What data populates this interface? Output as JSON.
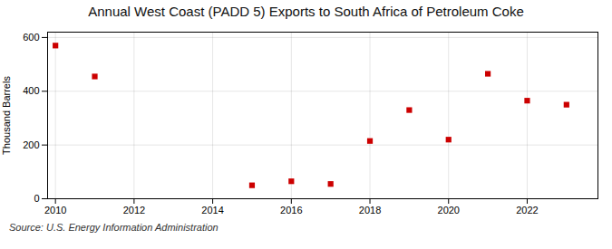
{
  "chart_data": {
    "type": "scatter",
    "title": "Annual West Coast (PADD 5) Exports to South Africa of Petroleum Coke",
    "ylabel": "Thousand Barrels",
    "source": "Source: U.S. Energy Information Administration",
    "x": [
      2010,
      2011,
      2015,
      2016,
      2017,
      2018,
      2019,
      2020,
      2021,
      2022,
      2023
    ],
    "values": [
      570,
      455,
      50,
      65,
      55,
      215,
      330,
      220,
      465,
      365,
      350
    ],
    "xlim": [
      2009.8,
      2023.8
    ],
    "ylim": [
      0,
      620
    ],
    "xticks": [
      2010,
      2012,
      2014,
      2016,
      2018,
      2020,
      2022
    ],
    "yticks": [
      0,
      200,
      400,
      600
    ],
    "color": "#cc0000",
    "marker": "square",
    "grid": true
  }
}
